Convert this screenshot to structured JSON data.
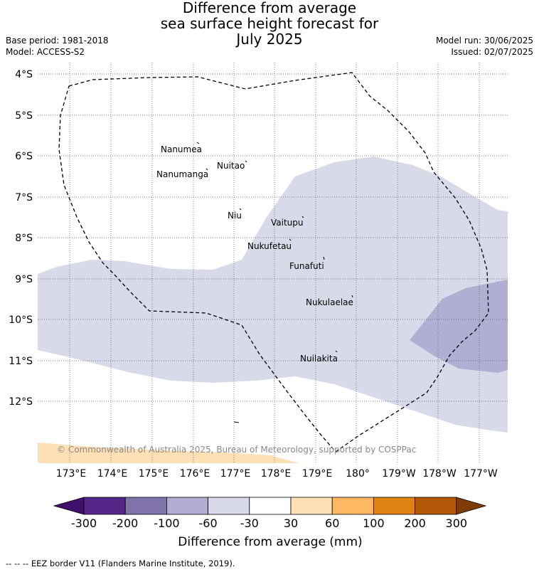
{
  "title": [
    "Difference from average",
    "sea surface height forecast for",
    "July 2025"
  ],
  "meta_left": {
    "base_period": "Base period: 1981-2018",
    "model": "Model: ACCESS-S2"
  },
  "meta_right": {
    "model_run": "Model run: 30/06/2025",
    "issued": "Issued: 02/07/2025"
  },
  "map": {
    "lat_labels": [
      "4°S",
      "5°S",
      "6°S",
      "7°S",
      "8°S",
      "9°S",
      "10°S",
      "11°S",
      "12°S"
    ],
    "lon_labels": [
      "173°E",
      "174°E",
      "175°E",
      "176°E",
      "177°E",
      "178°E",
      "179°E",
      "180°",
      "179°W",
      "178°W",
      "177°W"
    ],
    "islands": [
      {
        "name": "Nanumea"
      },
      {
        "name": "Nuitao"
      },
      {
        "name": "Nanumanga"
      },
      {
        "name": "Niu"
      },
      {
        "name": "Vaitupu"
      },
      {
        "name": "Nukufetau"
      },
      {
        "name": "Funafuti"
      },
      {
        "name": "Nukulaelae"
      },
      {
        "name": "Nuilakita"
      }
    ],
    "copyright": "© Commonwealth of Australia 2025, Bureau of Meteorology, supported by COSPPac",
    "colors": {
      "neg_60_30": "#d8d9e9",
      "neg_100_60": "#b0aed3",
      "pos_30_60": "#fee0b6"
    }
  },
  "colorbar": {
    "ticks": [
      "-300",
      "-200",
      "-100",
      "-60",
      "-30",
      "30",
      "60",
      "100",
      "200",
      "300"
    ],
    "colors": [
      "#3f0f6b",
      "#542788",
      "#8073ac",
      "#b2abd2",
      "#d8daeb",
      "#ffffff",
      "#fee0b6",
      "#fdb863",
      "#e08214",
      "#b35806",
      "#7f3b08"
    ],
    "label": "Difference from average (mm)"
  },
  "legend_note": "--  --  -- EEZ border V11 (Flanders Marine Institute, 2019)."
}
